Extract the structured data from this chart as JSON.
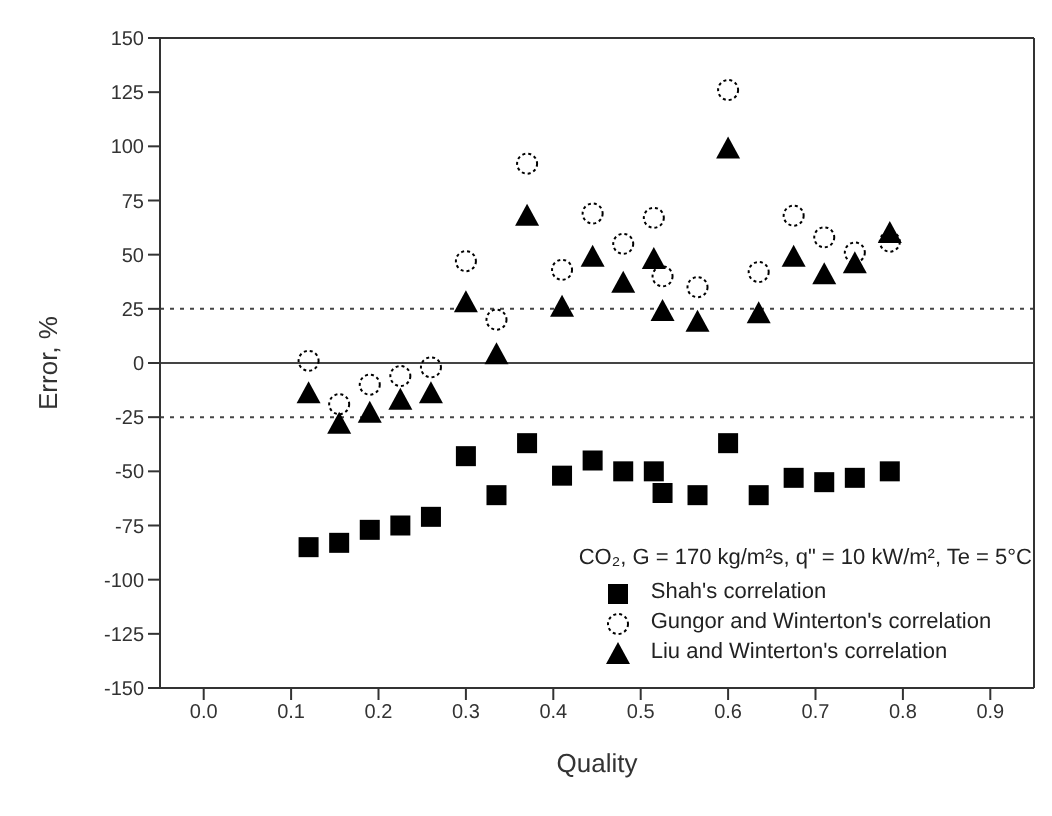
{
  "chart_data": {
    "type": "scatter",
    "xlabel": "Quality",
    "ylabel": "Error, %",
    "legend_title": "CO₂, G = 170 kg/m²s, q\" = 10 kW/m², Te = 5°C",
    "legend": "bottom right",
    "grid": false,
    "x": [
      0.12,
      0.155,
      0.19,
      0.225,
      0.26,
      0.3,
      0.335,
      0.37,
      0.41,
      0.445,
      0.48,
      0.515,
      0.525,
      0.565,
      0.6,
      0.635,
      0.675,
      0.71,
      0.745,
      0.785
    ],
    "xlim": [
      -0.05,
      0.95
    ],
    "xticks": [
      {
        "value": 0,
        "label": "0.0"
      },
      {
        "value": 0.1,
        "label": "0.1"
      },
      {
        "value": 0.2,
        "label": "0.2"
      },
      {
        "value": 0.3,
        "label": "0.3"
      },
      {
        "value": 0.4,
        "label": "0.4"
      },
      {
        "value": 0.5,
        "label": "0.5"
      },
      {
        "value": 0.6,
        "label": "0.6"
      },
      {
        "value": 0.7,
        "label": "0.7"
      },
      {
        "value": 0.8,
        "label": "0.8"
      },
      {
        "value": 0.9,
        "label": "0.9"
      }
    ],
    "ylim": [
      -150,
      150
    ],
    "yticks": [
      -150,
      -125,
      -100,
      -75,
      -50,
      -25,
      0,
      25,
      50,
      75,
      100,
      125,
      150
    ],
    "ref_lines": [
      {
        "axis": "y",
        "value": 25,
        "line_style": "dotted"
      },
      {
        "axis": "y",
        "value": 0,
        "line_style": "solid"
      },
      {
        "axis": "y",
        "value": -25,
        "line_style": "dotted"
      }
    ],
    "series": [
      {
        "name": "Shah's correlation",
        "color": "#000000",
        "marker": "square",
        "values": [
          -85,
          -83,
          -77,
          -75,
          -71,
          -43,
          -61,
          -37,
          -52,
          -45,
          -50,
          -50,
          -60,
          -61,
          -37,
          -61,
          -53,
          -55,
          -53,
          -50
        ]
      },
      {
        "name": "Gungor and Winterton's correlation",
        "color": "#000000",
        "marker": "circle",
        "values": [
          1,
          -19,
          -10,
          -6,
          -2,
          47,
          20,
          92,
          43,
          69,
          55,
          67,
          40,
          35,
          126,
          42,
          68,
          58,
          51,
          56
        ]
      },
      {
        "name": "Liu and Winterton's correlation",
        "color": "#000000",
        "marker": "triangle",
        "values": [
          -14,
          -28,
          -23,
          -17,
          -14,
          28,
          4,
          68,
          26,
          49,
          37,
          48,
          24,
          19,
          99,
          23,
          49,
          41,
          46,
          60
        ]
      }
    ]
  }
}
